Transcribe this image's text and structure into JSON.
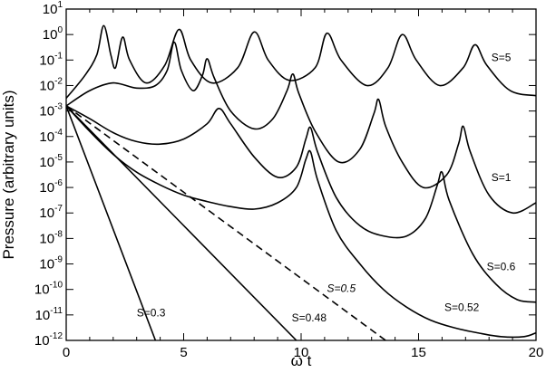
{
  "chart_data": {
    "type": "line",
    "xlabel": "ω t",
    "ylabel": "Pressure (arbitrary units)",
    "xlim": [
      0,
      20
    ],
    "ylim_log10": [
      -12,
      1
    ],
    "yscale": "log",
    "x_ticks": [
      {
        "value": 0,
        "label": "0"
      },
      {
        "value": 5,
        "label": "5"
      },
      {
        "value": 10,
        "label": "10"
      },
      {
        "value": 15,
        "label": "15"
      },
      {
        "value": 20,
        "label": "20"
      }
    ],
    "y_ticks": [
      {
        "exp": 1,
        "base": "10",
        "sup": "1"
      },
      {
        "exp": 0,
        "base": "10",
        "sup": "0"
      },
      {
        "exp": -1,
        "base": "10",
        "sup": "-1"
      },
      {
        "exp": -2,
        "base": "10",
        "sup": "-2"
      },
      {
        "exp": -3,
        "base": "10",
        "sup": "-3"
      },
      {
        "exp": -4,
        "base": "10",
        "sup": "-4"
      },
      {
        "exp": -5,
        "base": "10",
        "sup": "-5"
      },
      {
        "exp": -6,
        "base": "10",
        "sup": "-6"
      },
      {
        "exp": -7,
        "base": "10",
        "sup": "-7"
      },
      {
        "exp": -8,
        "base": "10",
        "sup": "-8"
      },
      {
        "exp": -9,
        "base": "10",
        "sup": "-9"
      },
      {
        "exp": -10,
        "base": "10",
        "sup": "-10"
      },
      {
        "exp": -11,
        "base": "10",
        "sup": "-11"
      },
      {
        "exp": -12,
        "base": "10",
        "sup": "-12"
      }
    ],
    "series": [
      {
        "name": "S=5",
        "dashed": false,
        "points": [
          [
            0,
            -2.5
          ],
          [
            0.8,
            -1.6
          ],
          [
            1.3,
            -0.8
          ],
          [
            1.6,
            0.35
          ],
          [
            1.9,
            -0.8
          ],
          [
            2.1,
            -1.3
          ],
          [
            2.4,
            -0.1
          ],
          [
            2.7,
            -1.0
          ],
          [
            3.4,
            -1.9
          ],
          [
            4.2,
            -1.2
          ],
          [
            4.8,
            0.2
          ],
          [
            5.3,
            -1.0
          ],
          [
            6.2,
            -1.9
          ],
          [
            7.3,
            -1.3
          ],
          [
            8.0,
            0.1
          ],
          [
            8.6,
            -1.0
          ],
          [
            9.5,
            -1.8
          ],
          [
            10.6,
            -1.3
          ],
          [
            11.1,
            0.05
          ],
          [
            11.7,
            -1.0
          ],
          [
            12.8,
            -2.0
          ],
          [
            13.7,
            -1.3
          ],
          [
            14.3,
            0.0
          ],
          [
            14.9,
            -1.0
          ],
          [
            15.9,
            -2.0
          ],
          [
            16.9,
            -1.3
          ],
          [
            17.4,
            -0.4
          ],
          [
            17.9,
            -1.2
          ],
          [
            18.9,
            -2.2
          ],
          [
            20,
            -2.4
          ]
        ]
      },
      {
        "name": "S=1",
        "dashed": false,
        "points": [
          [
            0,
            -2.8
          ],
          [
            1.0,
            -2.2
          ],
          [
            2.0,
            -1.9
          ],
          [
            3.0,
            -2.1
          ],
          [
            3.8,
            -2.0
          ],
          [
            4.3,
            -1.4
          ],
          [
            4.6,
            -0.3
          ],
          [
            4.9,
            -1.4
          ],
          [
            5.4,
            -2.2
          ],
          [
            5.8,
            -1.6
          ],
          [
            6.0,
            -0.95
          ],
          [
            6.3,
            -1.7
          ],
          [
            7.0,
            -3.0
          ],
          [
            8.0,
            -3.7
          ],
          [
            8.8,
            -3.3
          ],
          [
            9.4,
            -2.2
          ],
          [
            9.65,
            -1.55
          ],
          [
            9.9,
            -2.3
          ],
          [
            10.6,
            -3.8
          ],
          [
            11.6,
            -5.0
          ],
          [
            12.5,
            -4.5
          ],
          [
            13.1,
            -3.1
          ],
          [
            13.3,
            -2.55
          ],
          [
            13.6,
            -3.6
          ],
          [
            14.3,
            -5.0
          ],
          [
            15.2,
            -6.0
          ],
          [
            16.2,
            -5.5
          ],
          [
            16.7,
            -4.3
          ],
          [
            16.9,
            -3.6
          ],
          [
            17.2,
            -4.6
          ],
          [
            18.0,
            -6.3
          ],
          [
            19.0,
            -7.0
          ],
          [
            20,
            -6.6
          ]
        ]
      },
      {
        "name": "S=0.6",
        "dashed": false,
        "points": [
          [
            0,
            -2.8
          ],
          [
            1.0,
            -3.3
          ],
          [
            2.0,
            -3.85
          ],
          [
            3.0,
            -4.2
          ],
          [
            4.0,
            -4.3
          ],
          [
            5.0,
            -4.1
          ],
          [
            6.0,
            -3.5
          ],
          [
            6.5,
            -2.9
          ],
          [
            7.0,
            -3.5
          ],
          [
            8.0,
            -4.8
          ],
          [
            9.0,
            -5.6
          ],
          [
            9.8,
            -5.2
          ],
          [
            10.2,
            -4.1
          ],
          [
            10.4,
            -3.65
          ],
          [
            10.7,
            -4.6
          ],
          [
            11.5,
            -6.4
          ],
          [
            12.5,
            -7.5
          ],
          [
            13.5,
            -7.9
          ],
          [
            14.5,
            -7.9
          ],
          [
            15.3,
            -7.2
          ],
          [
            15.8,
            -5.9
          ],
          [
            16.0,
            -5.4
          ],
          [
            16.3,
            -6.5
          ],
          [
            17.3,
            -8.6
          ],
          [
            18.3,
            -9.8
          ],
          [
            19.2,
            -10.4
          ],
          [
            20,
            -10.5
          ]
        ]
      },
      {
        "name": "S=0.52",
        "dashed": false,
        "points": [
          [
            0,
            -2.8
          ],
          [
            1.0,
            -3.8
          ],
          [
            2.0,
            -4.7
          ],
          [
            3.0,
            -5.4
          ],
          [
            4.0,
            -5.9
          ],
          [
            5.0,
            -6.3
          ],
          [
            6.0,
            -6.55
          ],
          [
            7.0,
            -6.75
          ],
          [
            8.0,
            -6.85
          ],
          [
            9.0,
            -6.6
          ],
          [
            9.8,
            -6.0
          ],
          [
            10.2,
            -4.9
          ],
          [
            10.4,
            -4.6
          ],
          [
            10.7,
            -5.7
          ],
          [
            11.5,
            -7.7
          ],
          [
            12.5,
            -9.0
          ],
          [
            13.5,
            -10.0
          ],
          [
            14.5,
            -10.7
          ],
          [
            15.5,
            -11.2
          ],
          [
            16.5,
            -11.5
          ],
          [
            17.5,
            -11.7
          ],
          [
            18.5,
            -11.85
          ],
          [
            19.5,
            -11.85
          ],
          [
            20,
            -11.7
          ]
        ]
      },
      {
        "name": "S=0.5",
        "dashed": true,
        "points": [
          [
            0,
            -2.8
          ],
          [
            13.6,
            -12.0
          ]
        ]
      },
      {
        "name": "S=0.48",
        "dashed": false,
        "points": [
          [
            0,
            -2.8
          ],
          [
            9.8,
            -12.0
          ]
        ]
      },
      {
        "name": "S=0.3",
        "dashed": false,
        "points": [
          [
            0,
            -2.8
          ],
          [
            3.8,
            -12.0
          ]
        ]
      }
    ],
    "annotations": [
      {
        "text": "S=5",
        "x": 18.1,
        "y": -1.05,
        "italic": false
      },
      {
        "text": "S=1",
        "x": 18.1,
        "y": -5.75,
        "italic": false
      },
      {
        "text": "S=0.6",
        "x": 17.9,
        "y": -9.25,
        "italic": false
      },
      {
        "text": "S=0.52",
        "x": 16.1,
        "y": -10.85,
        "italic": false
      },
      {
        "text": "S=0.5",
        "x": 11.1,
        "y": -10.1,
        "italic": true
      },
      {
        "text": "S=0.48",
        "x": 9.6,
        "y": -11.25,
        "italic": false
      },
      {
        "text": "S=0.3",
        "x": 3.0,
        "y": -11.05,
        "italic": false
      }
    ]
  }
}
